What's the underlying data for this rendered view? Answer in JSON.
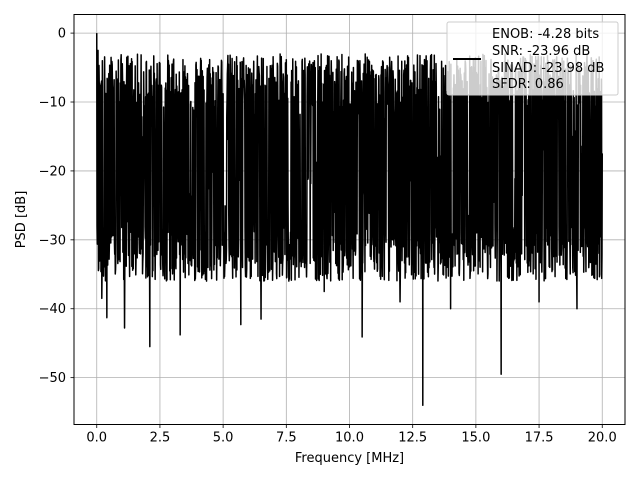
{
  "chart_data": {
    "type": "line",
    "title": "",
    "xlabel": "Frequency [MHz]",
    "ylabel": "PSD [dB]",
    "xlim": [
      -0.9,
      20.9
    ],
    "ylim": [
      -56.8,
      2.7
    ],
    "xticks": [
      0.0,
      2.5,
      5.0,
      7.5,
      10.0,
      12.5,
      15.0,
      17.5,
      20.0
    ],
    "xtick_labels": [
      "0.0",
      "2.5",
      "5.0",
      "7.5",
      "10.0",
      "12.5",
      "15.0",
      "17.5",
      "20.0"
    ],
    "yticks": [
      0,
      -10,
      -20,
      -30,
      -40,
      -50
    ],
    "ytick_labels": [
      "0",
      "−10",
      "−20",
      "−30",
      "−40",
      "−50"
    ],
    "grid": true,
    "legend_position": "top-right",
    "legend_lines": [
      "ENOB: -4.28 bits",
      "SNR: -23.96 dB",
      "SINAD: -23.98 dB",
      "SFDR: 0.86"
    ],
    "series": [
      {
        "color": "#000000",
        "x_start": 0.0,
        "x_end": 20.0,
        "dense_noise": {
          "y_median": -18,
          "y_upper_typical": -7,
          "y_lower_typical": -32
        },
        "peaks": [
          [
            0.0,
            0.0
          ],
          [
            0.05,
            -2.5
          ],
          [
            0.1,
            -8
          ],
          [
            8.5,
            -5
          ],
          [
            10.7,
            -3.5
          ],
          [
            15.1,
            -4
          ],
          [
            17.3,
            -4.5
          ]
        ],
        "dips": [
          [
            0.2,
            -38.5
          ],
          [
            0.4,
            -41.3
          ],
          [
            1.1,
            -42.8
          ],
          [
            2.1,
            -45.5
          ],
          [
            3.3,
            -43.8
          ],
          [
            5.7,
            -42.3
          ],
          [
            6.5,
            -41.5
          ],
          [
            9.0,
            -37.5
          ],
          [
            10.5,
            -44.1
          ],
          [
            12.0,
            -39.0
          ],
          [
            12.9,
            -54.0
          ],
          [
            14.0,
            -40.0
          ],
          [
            16.0,
            -49.5
          ],
          [
            17.5,
            -39.0
          ],
          [
            19.0,
            -40.0
          ],
          [
            19.9,
            -35.0
          ]
        ]
      }
    ]
  }
}
